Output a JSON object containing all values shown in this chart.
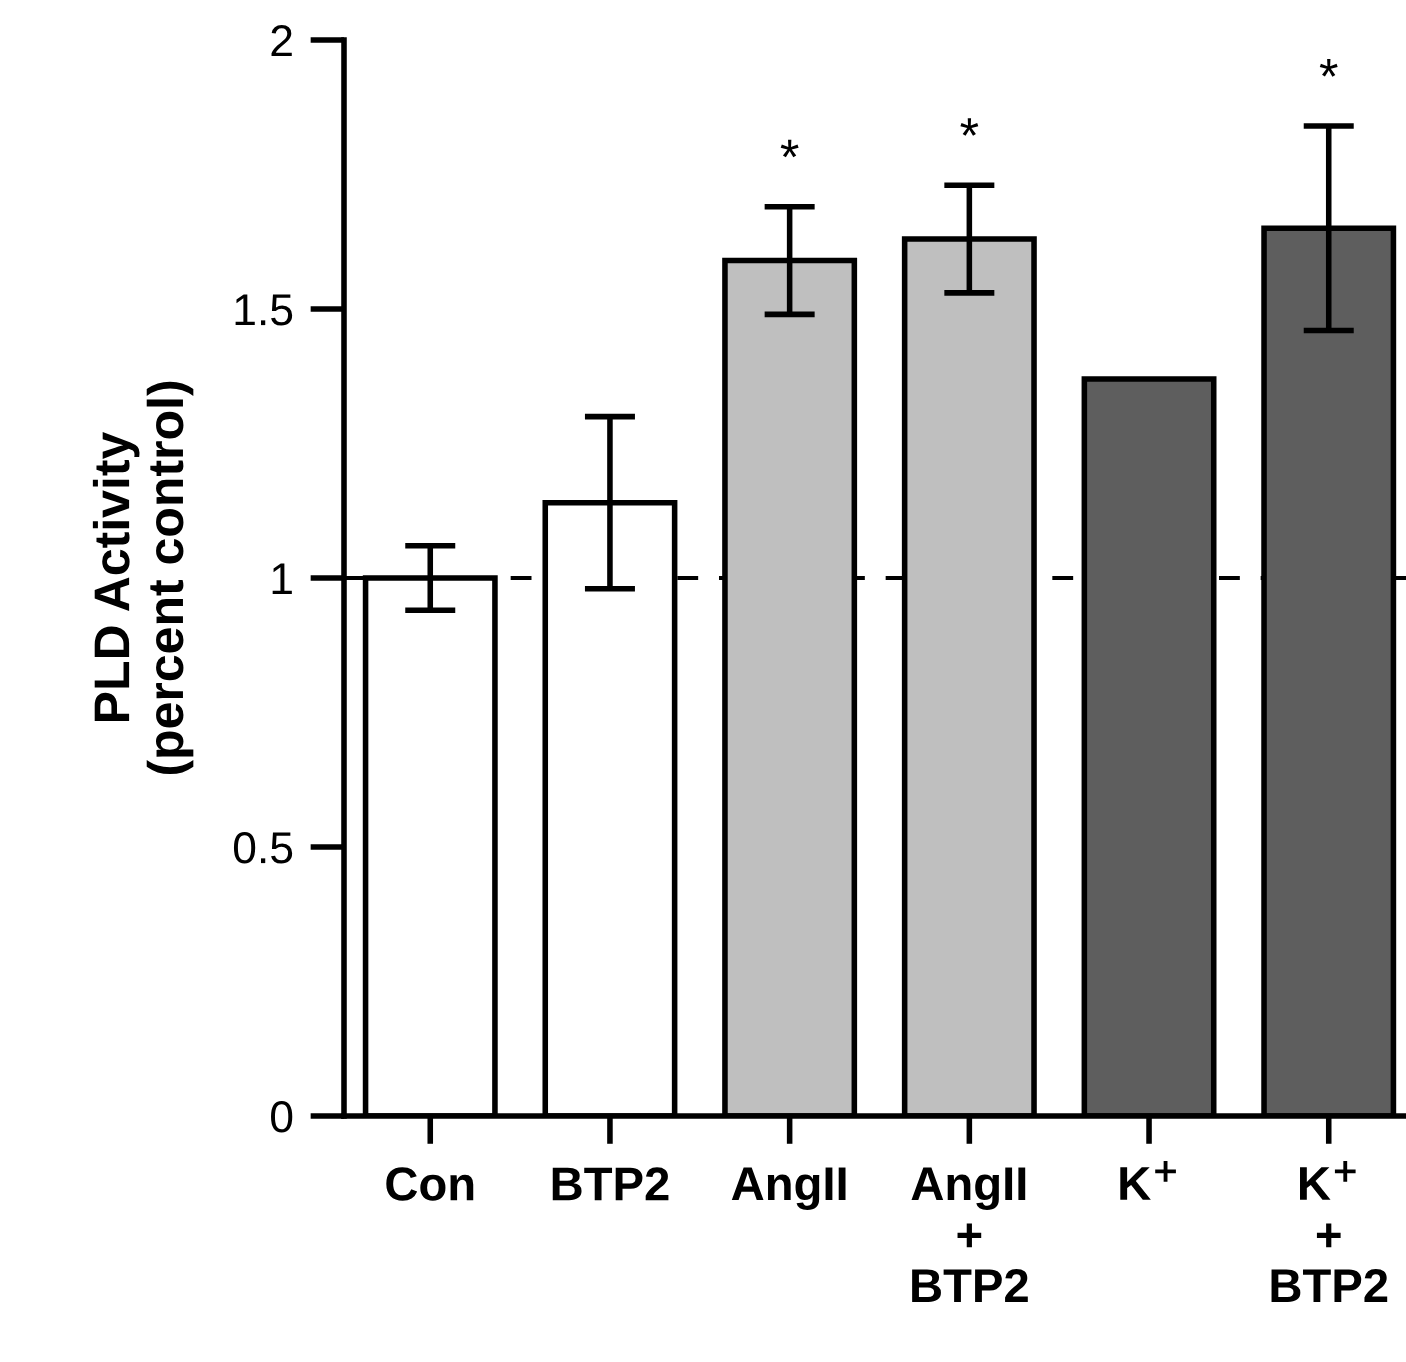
{
  "chart_data": {
    "type": "bar",
    "ylabel": "PLD Activity\n(percent control)",
    "categories": [
      "Con",
      "BTP2",
      "AngII",
      "AngII\n+\nBTP2",
      "K$^{+}$",
      "K$^{+}$\n+\nBTP2"
    ],
    "value_labels": [
      null,
      null,
      "*",
      "*",
      null,
      "*"
    ],
    "values": [
      1.0,
      1.14,
      1.59,
      1.63,
      1.37,
      1.65
    ],
    "colors": [
      "#ffffff",
      "#ffffff",
      "#bfbfbf",
      "#bfbfbf",
      "#5e5e5e",
      "#5e5e5e"
    ],
    "errors": [
      0.06,
      0.16,
      0.1,
      0.1,
      null,
      0.19
    ],
    "ylim": [
      0,
      2
    ],
    "yticks": [
      0,
      0.5,
      1,
      1.5,
      2
    ],
    "ref_lines": [
      {
        "axis": "y",
        "value": 1,
        "line_style": "dashed",
        "color": "#000000"
      }
    ],
    "grid": false,
    "legend": false
  }
}
